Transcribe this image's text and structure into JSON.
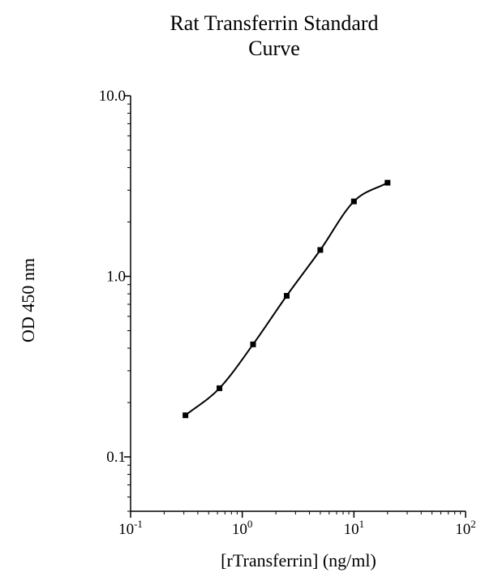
{
  "chart_data": {
    "type": "line",
    "title_lines": [
      "Rat Transferrin Standard",
      "Curve"
    ],
    "xlabel": "[rTransferrin] (ng/ml)",
    "ylabel": "OD 450 nm",
    "x_scale": "log",
    "y_scale": "log",
    "xlim": [
      0.1,
      100
    ],
    "ylim": [
      0.05,
      10
    ],
    "x_ticks": [
      {
        "value": 0.1,
        "base": "10",
        "exp": "-1"
      },
      {
        "value": 1,
        "base": "10",
        "exp": "0"
      },
      {
        "value": 10,
        "base": "10",
        "exp": "1"
      },
      {
        "value": 100,
        "base": "10",
        "exp": "2"
      }
    ],
    "y_ticks": [
      {
        "value": 0.1,
        "label": "0.1"
      },
      {
        "value": 1,
        "label": "1.0"
      },
      {
        "value": 10,
        "label": "10.0"
      }
    ],
    "grid": false,
    "series": [
      {
        "x": [
          0.31,
          0.625,
          1.25,
          2.5,
          5,
          10,
          20
        ],
        "y": [
          0.17,
          0.24,
          0.42,
          0.78,
          1.4,
          2.6,
          3.3
        ]
      }
    ],
    "line_color": "#000000",
    "marker_color": "#000000"
  }
}
